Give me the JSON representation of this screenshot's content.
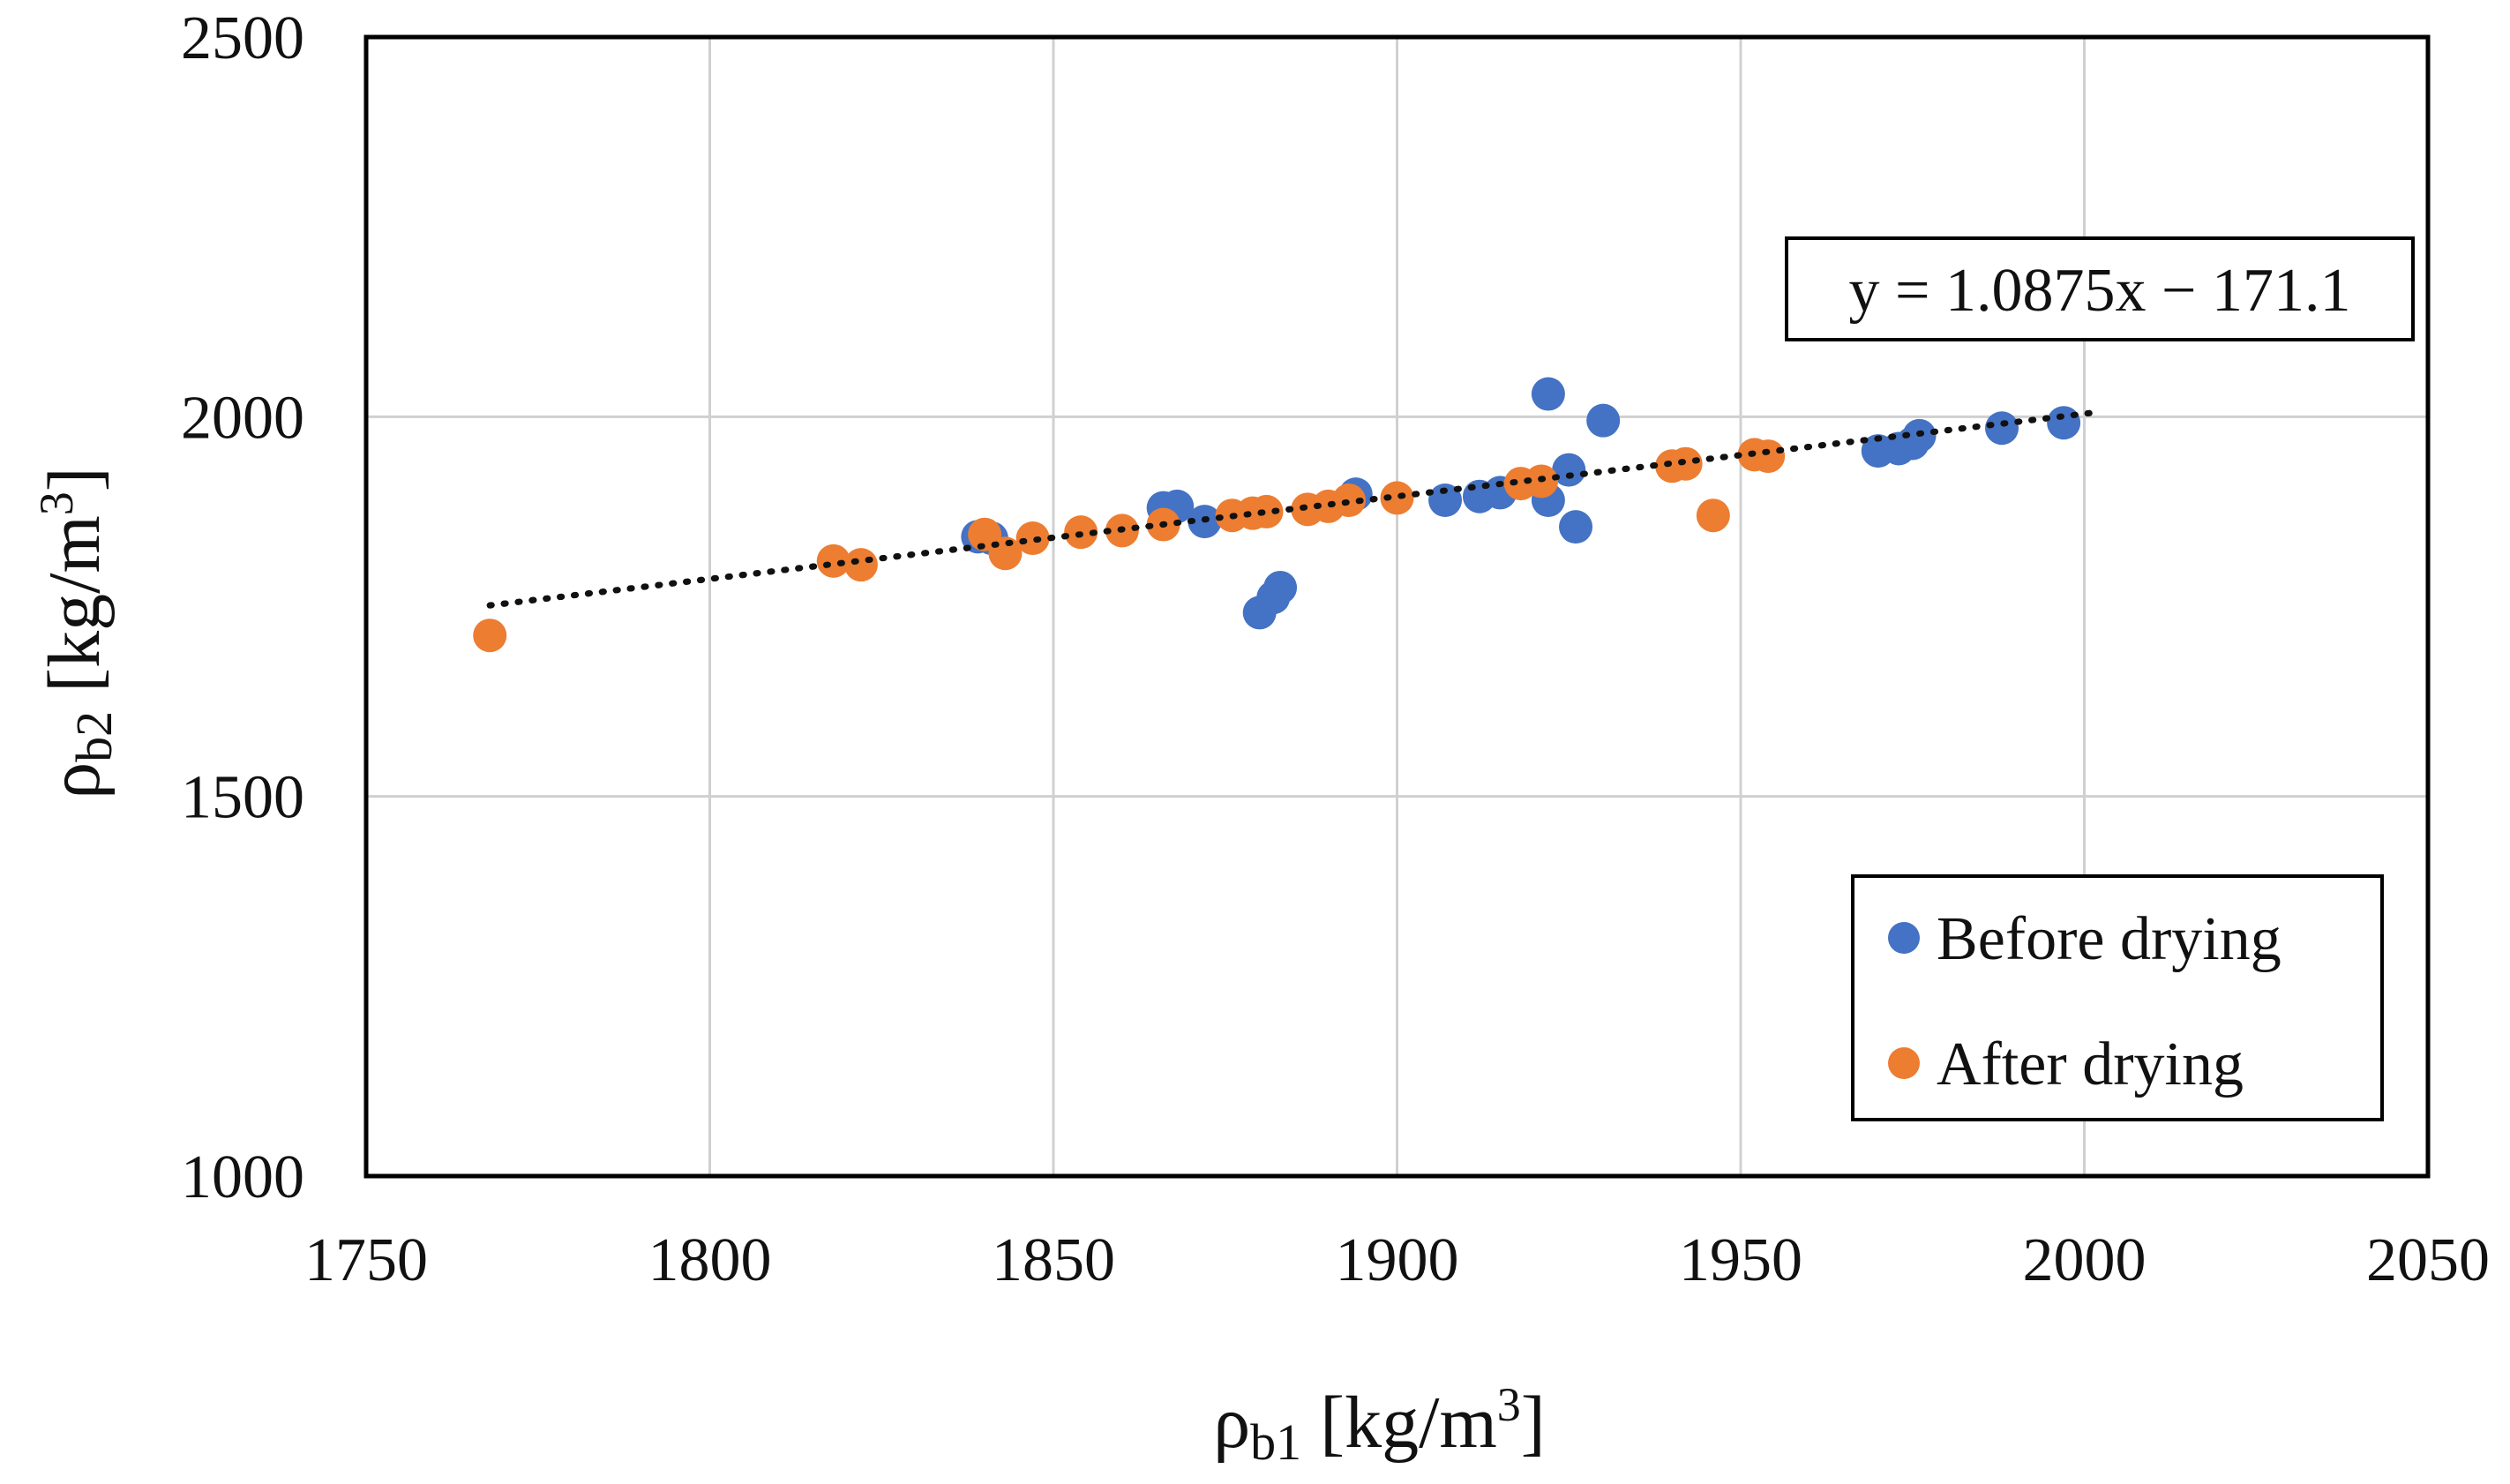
{
  "chart_data": {
    "type": "scatter",
    "title": "",
    "xlabel": {
      "base": "ρ",
      "sub": "b1",
      "unit_pre": " [kg/m",
      "unit_sup": "3",
      "unit_post": "]"
    },
    "ylabel": {
      "base": "ρ",
      "sub": "b2",
      "unit_pre": " [kg/m",
      "unit_sup": "3",
      "unit_post": "]"
    },
    "xlim": [
      1750,
      2050
    ],
    "ylim": [
      1000,
      2500
    ],
    "x_ticks": [
      1750,
      1800,
      1850,
      1900,
      1950,
      2000,
      2050
    ],
    "y_ticks": [
      1000,
      1500,
      2000,
      2500
    ],
    "grid": true,
    "legend_position": "bottom-right",
    "trendline": {
      "equation": "y = 1.0875x − 171.1",
      "slope": 1.0875,
      "intercept": -171.1,
      "x_range": [
        1768,
        2001
      ]
    },
    "series": [
      {
        "name": "Before drying",
        "color": "#4472C4",
        "points": [
          [
            1839,
            1842
          ],
          [
            1841,
            1840
          ],
          [
            1866,
            1880
          ],
          [
            1868,
            1882
          ],
          [
            1872,
            1862
          ],
          [
            1880,
            1742
          ],
          [
            1882,
            1762
          ],
          [
            1883,
            1775
          ],
          [
            1894,
            1898
          ],
          [
            1907,
            1890
          ],
          [
            1912,
            1895
          ],
          [
            1915,
            1900
          ],
          [
            1922,
            2030
          ],
          [
            1922,
            1890
          ],
          [
            1925,
            1930
          ],
          [
            1926,
            1855
          ],
          [
            1930,
            1995
          ],
          [
            1970,
            1955
          ],
          [
            1973,
            1958
          ],
          [
            1975,
            1965
          ],
          [
            1976,
            1975
          ],
          [
            1988,
            1985
          ],
          [
            1997,
            1992
          ]
        ]
      },
      {
        "name": "After drying",
        "color": "#ED7D31",
        "points": [
          [
            1768,
            1712
          ],
          [
            1818,
            1810
          ],
          [
            1822,
            1805
          ],
          [
            1840,
            1845
          ],
          [
            1843,
            1820
          ],
          [
            1847,
            1840
          ],
          [
            1854,
            1848
          ],
          [
            1860,
            1850
          ],
          [
            1866,
            1858
          ],
          [
            1876,
            1870
          ],
          [
            1879,
            1873
          ],
          [
            1881,
            1875
          ],
          [
            1887,
            1878
          ],
          [
            1890,
            1882
          ],
          [
            1893,
            1890
          ],
          [
            1900,
            1893
          ],
          [
            1918,
            1912
          ],
          [
            1921,
            1915
          ],
          [
            1940,
            1935
          ],
          [
            1942,
            1938
          ],
          [
            1946,
            1870
          ],
          [
            1952,
            1950
          ],
          [
            1954,
            1948
          ]
        ]
      }
    ]
  }
}
